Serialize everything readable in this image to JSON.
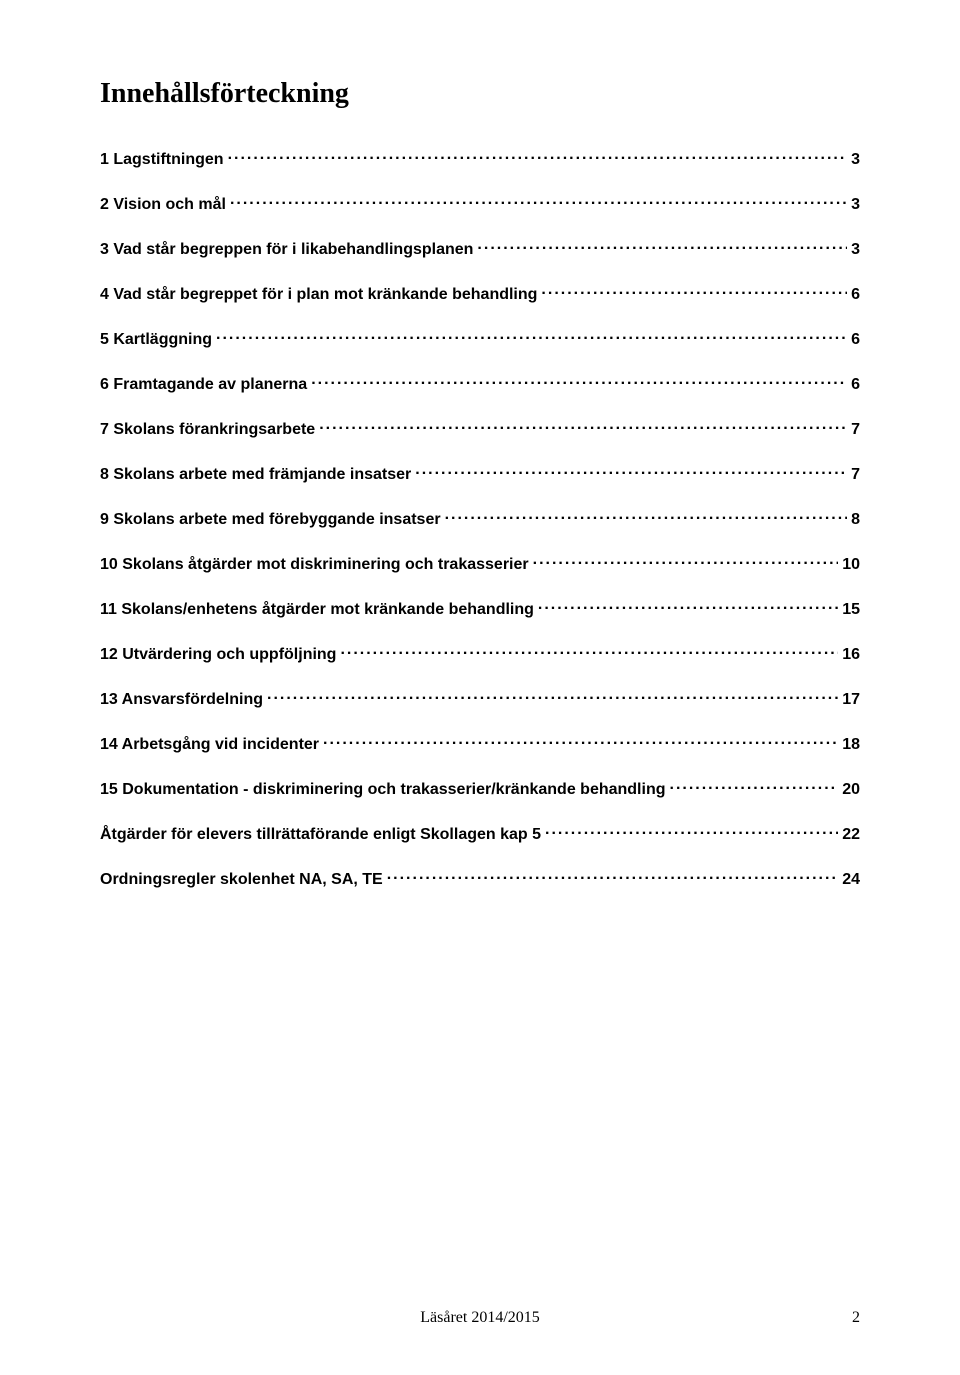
{
  "title": "Innehållsförteckning",
  "entries": [
    {
      "label": "1 Lagstiftningen",
      "page": "3"
    },
    {
      "label": "2 Vision och mål",
      "page": "3"
    },
    {
      "label": "3 Vad står begreppen för i likabehandlingsplanen",
      "page": "3"
    },
    {
      "label": "4 Vad står begreppet för i plan mot kränkande behandling",
      "page": "6"
    },
    {
      "label": "5 Kartläggning",
      "page": "6"
    },
    {
      "label": "6 Framtagande av planerna",
      "page": "6"
    },
    {
      "label": "7 Skolans förankringsarbete",
      "page": "7"
    },
    {
      "label": "8 Skolans arbete med främjande insatser",
      "page": "7"
    },
    {
      "label": "9 Skolans arbete med förebyggande insatser",
      "page": "8"
    },
    {
      "label": "10 Skolans åtgärder mot diskriminering och trakasserier",
      "page": "10"
    },
    {
      "label": "11 Skolans/enhetens åtgärder mot kränkande behandling",
      "page": "15"
    },
    {
      "label": "12 Utvärdering och uppföljning",
      "page": "16"
    },
    {
      "label": "13 Ansvarsfördelning",
      "page": "17"
    },
    {
      "label": "14 Arbetsgång vid incidenter",
      "page": "18"
    },
    {
      "label": "15 Dokumentation - diskriminering och trakasserier/kränkande behandling",
      "page": "20"
    },
    {
      "label": "Åtgärder för elevers tillrättaförande enligt Skollagen kap 5",
      "page": "22"
    },
    {
      "label": "Ordningsregler skolenhet NA, SA, TE",
      "page": "24"
    }
  ],
  "footer": {
    "text": "Läsåret 2014/2015",
    "page": "2"
  }
}
